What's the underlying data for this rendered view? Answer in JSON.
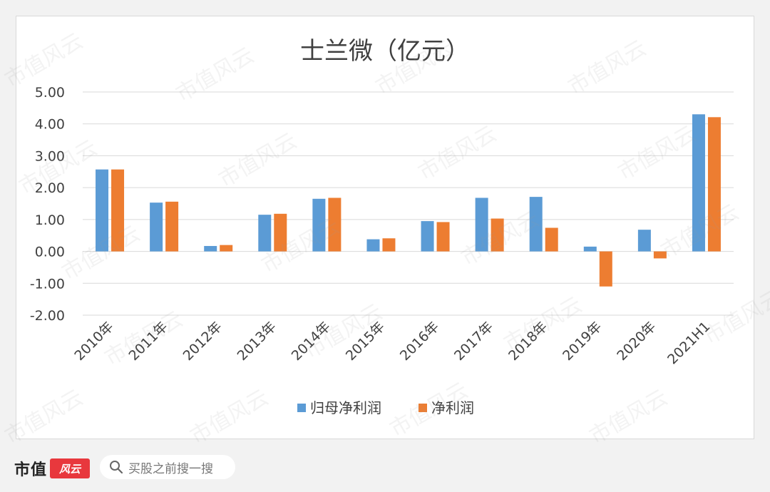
{
  "chart_data": {
    "type": "bar",
    "title": "士兰微（亿元）",
    "categories": [
      "2010年",
      "2011年",
      "2012年",
      "2013年",
      "2014年",
      "2015年",
      "2016年",
      "2017年",
      "2018年",
      "2019年",
      "2020年",
      "2021H1"
    ],
    "series": [
      {
        "name": "归母净利润",
        "color": "#5b9bd5",
        "values": [
          2.57,
          1.53,
          0.17,
          1.15,
          1.65,
          0.38,
          0.95,
          1.68,
          1.71,
          0.15,
          0.68,
          4.3
        ]
      },
      {
        "name": "净利润",
        "color": "#ed7d31",
        "values": [
          2.57,
          1.56,
          0.2,
          1.18,
          1.68,
          0.41,
          0.92,
          1.03,
          0.74,
          -1.1,
          -0.22,
          4.21
        ]
      }
    ],
    "yticks": [
      "5.00",
      "4.00",
      "3.00",
      "2.00",
      "1.00",
      "0.00",
      "-1.00",
      "-2.00"
    ],
    "ylim": [
      -2,
      5
    ],
    "grid": true,
    "legend_position": "bottom"
  },
  "footer": {
    "brand": "市值",
    "brand_logo_text": "风云",
    "search_text": "买股之前搜一搜"
  },
  "watermark": "市值风云"
}
